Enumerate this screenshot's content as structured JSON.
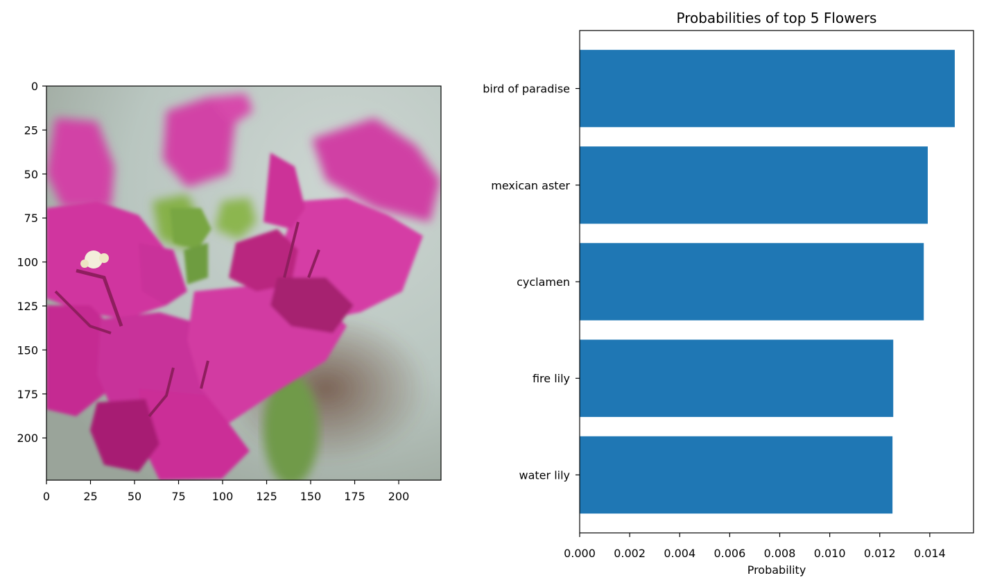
{
  "chart_data": [
    {
      "type": "image",
      "image_description_icon": "pink-bougainvillea-flower",
      "x_ticks": [
        0,
        25,
        50,
        75,
        100,
        125,
        150,
        175,
        200
      ],
      "y_ticks": [
        0,
        25,
        50,
        75,
        100,
        125,
        150,
        175,
        200
      ],
      "xlim": [
        0,
        224
      ],
      "ylim": [
        224,
        0
      ]
    },
    {
      "type": "bar",
      "orientation": "horizontal",
      "title": "Probabilities of top 5 Flowers",
      "xlabel": "Probability",
      "ylabel": "",
      "categories": [
        "bird of paradise",
        "mexican aster",
        "cyclamen",
        "fire lily",
        "water lily"
      ],
      "values": [
        0.015,
        0.01392,
        0.01376,
        0.01254,
        0.01251
      ],
      "x_ticks": [
        0.0,
        0.002,
        0.004,
        0.006,
        0.008,
        0.01,
        0.012,
        0.014
      ],
      "x_tick_labels": [
        "0.000",
        "0.002",
        "0.004",
        "0.006",
        "0.008",
        "0.010",
        "0.012",
        "0.014"
      ],
      "xlim": [
        0,
        0.01575
      ],
      "bar_color": "#1f77b4",
      "grid": false,
      "legend": "none"
    }
  ]
}
